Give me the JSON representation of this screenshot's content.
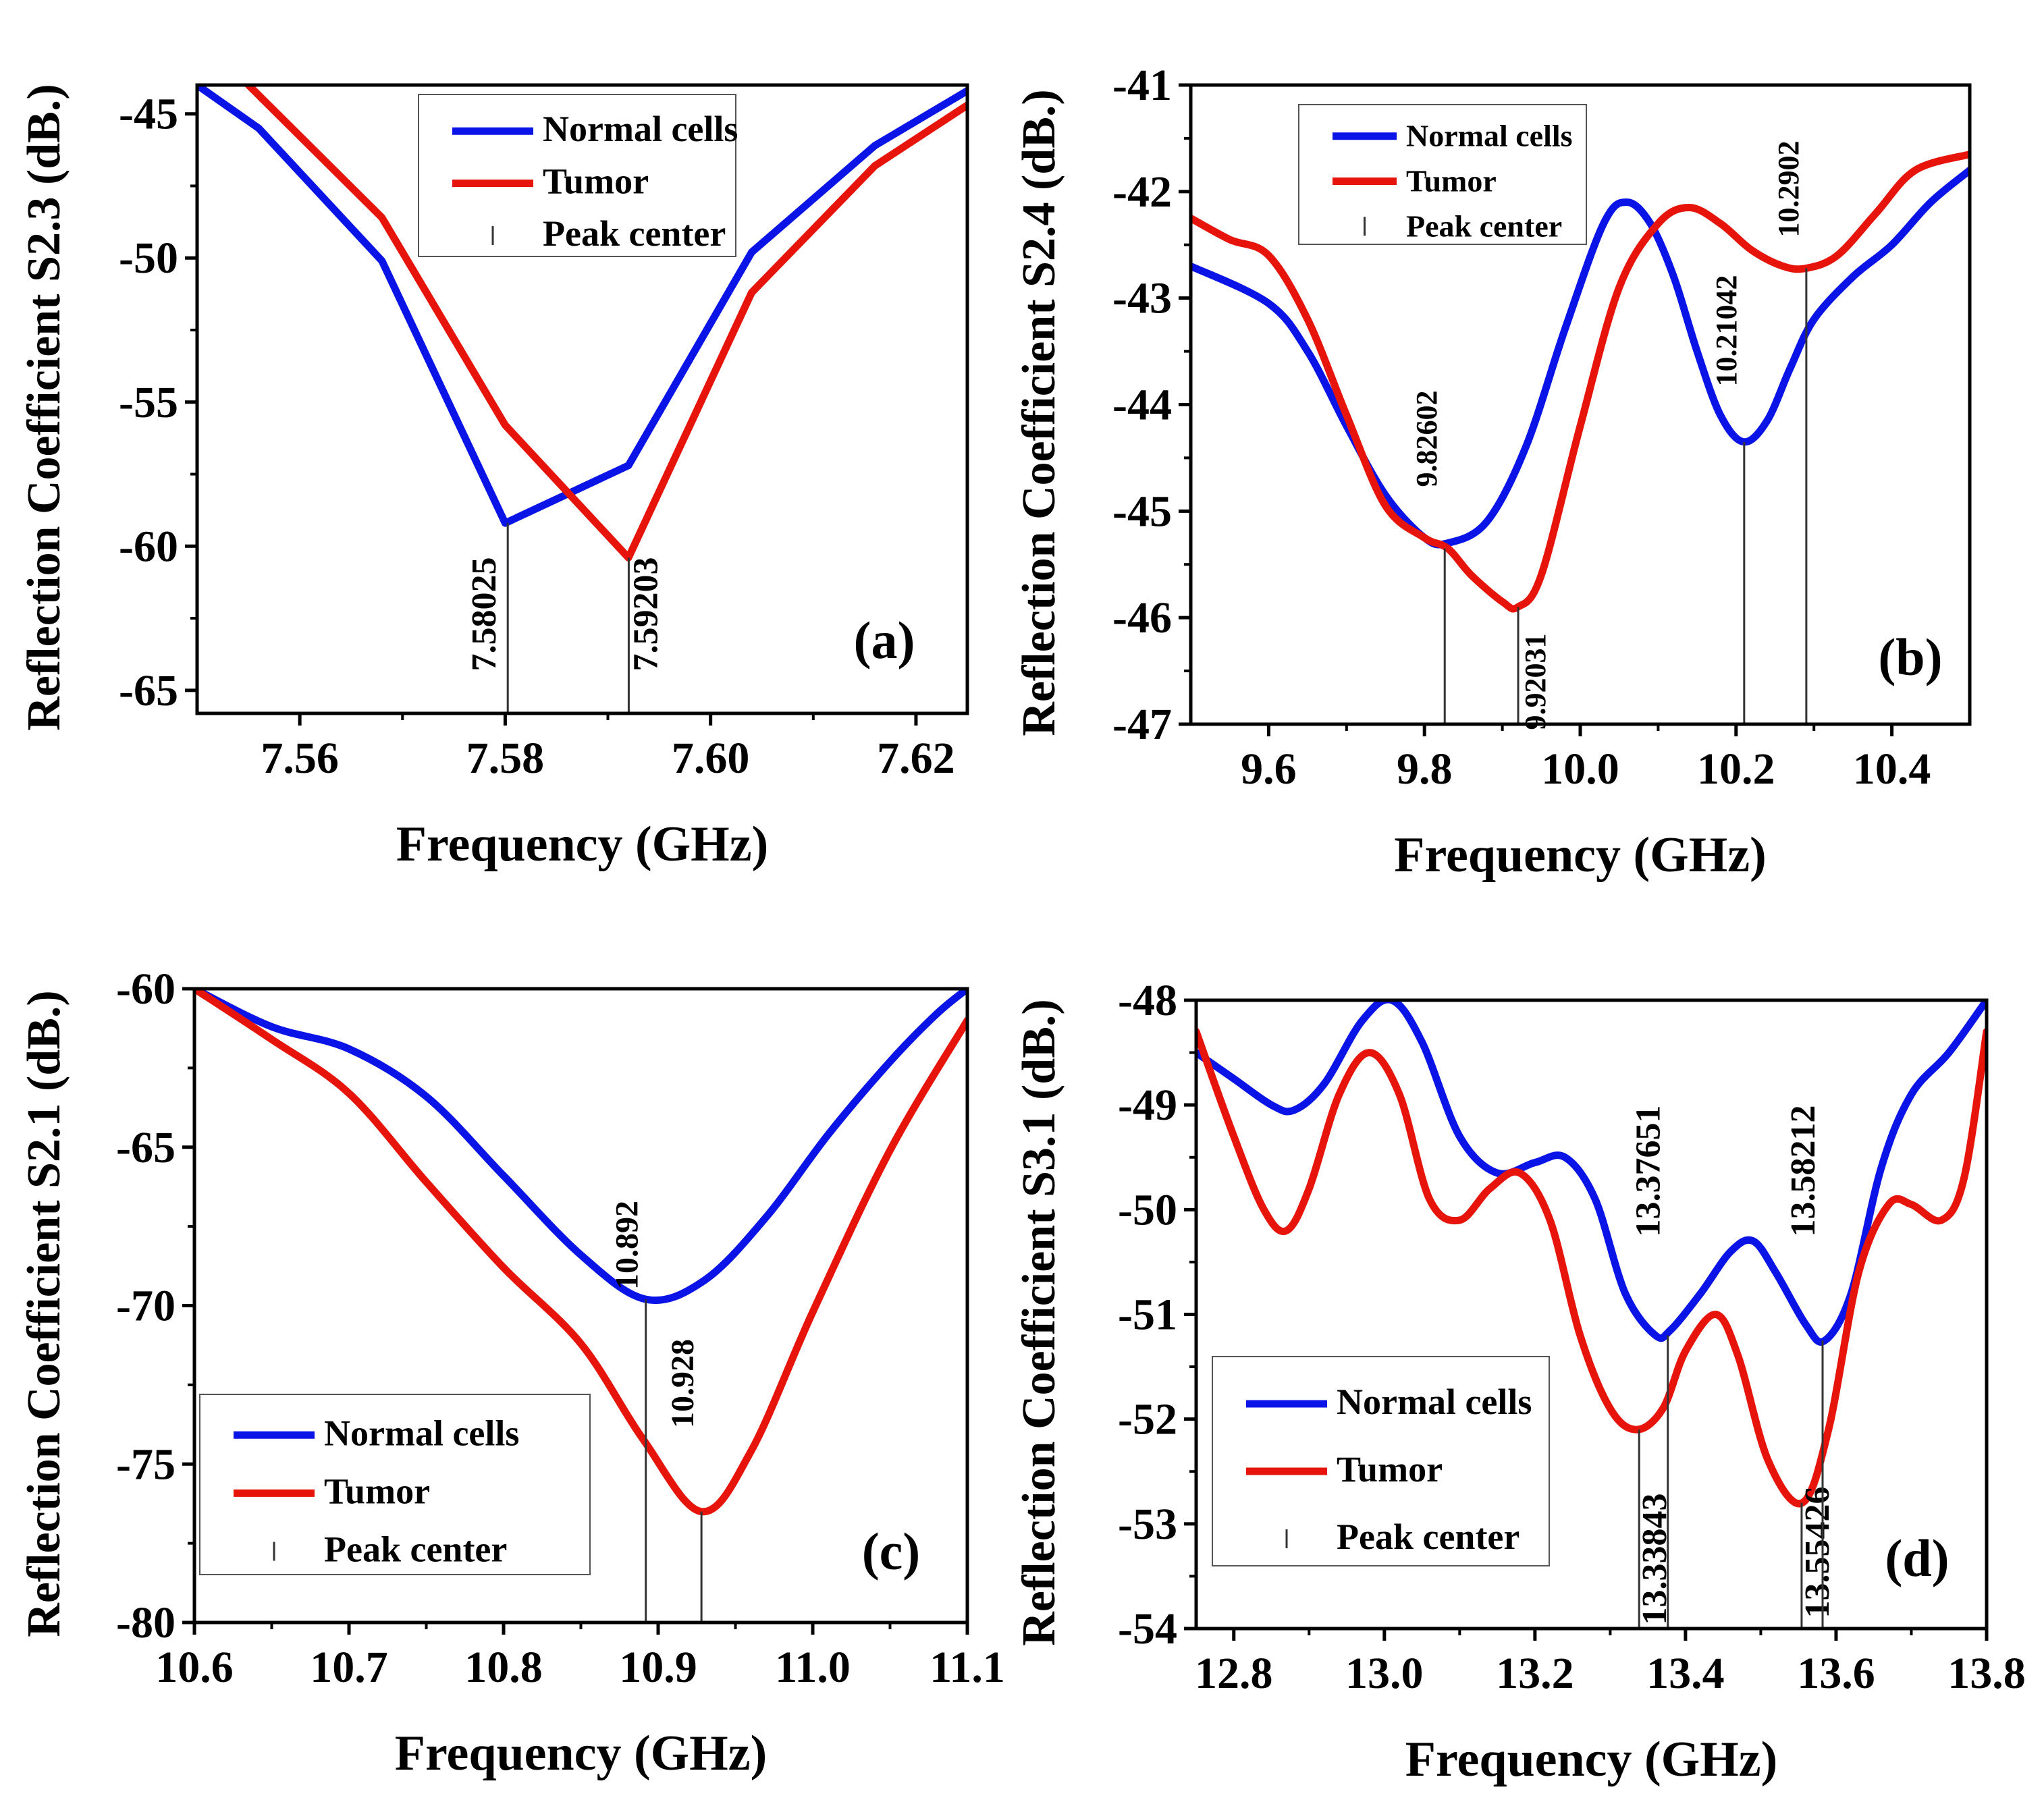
{
  "chart_data": [
    {
      "type": "line",
      "panel_label": "(a)",
      "xlabel": "Frequency (GHz)",
      "ylabel": "Reflection Coefficient S2.3 (dB.)",
      "xlim": [
        7.55,
        7.625
      ],
      "ylim": [
        -65.8,
        -44
      ],
      "xticks": [
        7.56,
        7.58,
        7.6,
        7.62
      ],
      "xtick_labels": [
        "7.56",
        "7.58",
        "7.60",
        "7.62"
      ],
      "yticks": [
        -45,
        -50,
        -55,
        -60,
        -65
      ],
      "ytick_labels": [
        "-45",
        "-50",
        "-55",
        "-60",
        "-65"
      ],
      "series": [
        {
          "name": "Normal cells",
          "color": "#0a14e6",
          "x": [
            7.55,
            7.556,
            7.568,
            7.58,
            7.592,
            7.604,
            7.616,
            7.625
          ],
          "y": [
            -44,
            -45.5,
            -50.1,
            -59.2,
            -57.2,
            -49.8,
            -46.1,
            -44.2
          ]
        },
        {
          "name": "Tumor",
          "color": "#e6140a",
          "x": [
            7.555,
            7.568,
            7.58,
            7.592,
            7.604,
            7.616,
            7.625
          ],
          "y": [
            -44,
            -48.6,
            -55.8,
            -60.4,
            -51.2,
            -46.8,
            -44.7
          ]
        }
      ],
      "peaks": [
        {
          "x": 7.58025,
          "y": -59.2,
          "label": "7.58025"
        },
        {
          "x": 7.59203,
          "y": -60.4,
          "label": "7.59203"
        }
      ],
      "legend": {
        "position": "top-center",
        "entries": [
          "Normal cells",
          "Tumor",
          "Peak center"
        ]
      }
    },
    {
      "type": "line",
      "panel_label": "(b)",
      "xlabel": "Frequency (GHz)",
      "ylabel": "Reflection Coefficient S2.4 (dB.)",
      "xlim": [
        9.5,
        10.5
      ],
      "ylim": [
        -47,
        -41
      ],
      "xticks": [
        9.6,
        9.8,
        10.0,
        10.2,
        10.4
      ],
      "xtick_labels": [
        "9.6",
        "9.8",
        "10.0",
        "10.2",
        "10.4"
      ],
      "yticks": [
        -41,
        -42,
        -43,
        -44,
        -45,
        -46,
        -47
      ],
      "ytick_labels": [
        "-41",
        "-42",
        "-43",
        "-44",
        "-45",
        "-46",
        "-47"
      ],
      "series": [
        {
          "name": "Normal cells",
          "color": "#0a14e6",
          "x": [
            9.5,
            9.6,
            9.65,
            9.7,
            9.75,
            9.8,
            9.83,
            9.88,
            9.93,
            9.98,
            10.03,
            10.06,
            10.09,
            10.12,
            10.15,
            10.18,
            10.21,
            10.24,
            10.27,
            10.3,
            10.35,
            10.4,
            10.45,
            10.5
          ],
          "y": [
            -42.7,
            -43.05,
            -43.5,
            -44.2,
            -44.85,
            -45.25,
            -45.3,
            -45.1,
            -44.4,
            -43.3,
            -42.3,
            -42.1,
            -42.3,
            -42.8,
            -43.5,
            -44.1,
            -44.35,
            -44.15,
            -43.65,
            -43.2,
            -42.8,
            -42.5,
            -42.1,
            -41.8
          ]
        },
        {
          "name": "Tumor",
          "color": "#e6140a",
          "x": [
            9.5,
            9.55,
            9.6,
            9.65,
            9.7,
            9.75,
            9.8,
            9.83,
            9.86,
            9.9,
            9.92,
            9.95,
            10.0,
            10.05,
            10.1,
            10.14,
            10.18,
            10.22,
            10.26,
            10.29,
            10.33,
            10.38,
            10.43,
            10.5
          ],
          "y": [
            -42.25,
            -42.45,
            -42.6,
            -43.2,
            -44.1,
            -44.95,
            -45.25,
            -45.35,
            -45.6,
            -45.85,
            -45.9,
            -45.6,
            -44.2,
            -42.9,
            -42.3,
            -42.15,
            -42.3,
            -42.55,
            -42.7,
            -42.72,
            -42.6,
            -42.2,
            -41.8,
            -41.65
          ]
        }
      ],
      "peaks": [
        {
          "x": 9.82602,
          "y": -45.35,
          "label": "9.82602"
        },
        {
          "x": 9.92031,
          "y": -45.9,
          "label": "9.92031"
        },
        {
          "x": 10.21042,
          "y": -44.35,
          "label": "10.21042"
        },
        {
          "x": 10.2902,
          "y": -42.72,
          "label": "10.2902"
        }
      ],
      "legend": {
        "position": "top-left",
        "entries": [
          "Normal cells",
          "Tumor",
          "Peak center"
        ]
      }
    },
    {
      "type": "line",
      "panel_label": "(c)",
      "xlabel": "Frequency (GHz)",
      "ylabel": "Reflection Coefficient S2.1 (dB.)",
      "xlim": [
        10.6,
        11.1
      ],
      "ylim": [
        -80,
        -60
      ],
      "xticks": [
        10.6,
        10.7,
        10.8,
        10.9,
        11.0,
        11.1
      ],
      "xtick_labels": [
        "10.6",
        "10.7",
        "10.8",
        "10.9",
        "11.0",
        "11.1"
      ],
      "yticks": [
        -60,
        -65,
        -70,
        -75,
        -80
      ],
      "ytick_labels": [
        "-60",
        "-65",
        "-70",
        "-75",
        "-80"
      ],
      "series": [
        {
          "name": "Normal cells",
          "color": "#0a14e6",
          "x": [
            10.6,
            10.65,
            10.7,
            10.75,
            10.8,
            10.85,
            10.892,
            10.93,
            10.97,
            11.01,
            11.05,
            11.08,
            11.1
          ],
          "y": [
            -60,
            -61.2,
            -61.9,
            -63.4,
            -65.9,
            -68.4,
            -69.8,
            -69.2,
            -67.2,
            -64.6,
            -62.3,
            -60.8,
            -60
          ]
        },
        {
          "name": "Tumor",
          "color": "#e6140a",
          "x": [
            10.6,
            10.65,
            10.7,
            10.75,
            10.8,
            10.85,
            10.89,
            10.928,
            10.96,
            11.0,
            11.05,
            11.1
          ],
          "y": [
            -60,
            -61.6,
            -63.3,
            -66.1,
            -68.8,
            -71.2,
            -74.2,
            -76.5,
            -74.6,
            -70.2,
            -65.1,
            -61
          ]
        }
      ],
      "peaks": [
        {
          "x": 10.892,
          "y": -69.8,
          "label": "10.892"
        },
        {
          "x": 10.928,
          "y": -76.5,
          "label": "10.928"
        }
      ],
      "legend": {
        "position": "bottom-left",
        "entries": [
          "Normal cells",
          "Tumor",
          "Peak center"
        ]
      }
    },
    {
      "type": "line",
      "panel_label": "(d)",
      "xlabel": "Frequency (GHz)",
      "ylabel": "Reflection Coefficient S3.1 (dB.)",
      "xlim": [
        12.75,
        13.8
      ],
      "ylim": [
        -54,
        -48
      ],
      "xticks": [
        12.8,
        13.0,
        13.2,
        13.4,
        13.6,
        13.8
      ],
      "xtick_labels": [
        "12.8",
        "13.0",
        "13.2",
        "13.4",
        "13.6",
        "13.8"
      ],
      "yticks": [
        -48,
        -49,
        -50,
        -51,
        -52,
        -53,
        -54
      ],
      "ytick_labels": [
        "-48",
        "-49",
        "-50",
        "-51",
        "-52",
        "-53",
        "-54"
      ],
      "series": [
        {
          "name": "Normal cells",
          "color": "#0a14e6",
          "x": [
            12.75,
            12.8,
            12.85,
            12.88,
            12.92,
            12.97,
            13.01,
            13.05,
            13.1,
            13.15,
            13.2,
            13.24,
            13.28,
            13.32,
            13.36,
            13.38,
            13.42,
            13.46,
            13.49,
            13.52,
            13.56,
            13.585,
            13.62,
            13.66,
            13.7,
            13.75,
            13.8
          ],
          "y": [
            -48.5,
            -48.75,
            -49.0,
            -49.05,
            -48.8,
            -48.2,
            -48.0,
            -48.4,
            -49.3,
            -49.65,
            -49.55,
            -49.5,
            -49.9,
            -50.8,
            -51.2,
            -51.15,
            -50.8,
            -50.4,
            -50.3,
            -50.6,
            -51.1,
            -51.25,
            -50.8,
            -49.6,
            -48.9,
            -48.5,
            -48.0
          ]
        },
        {
          "name": "Tumor",
          "color": "#e6140a",
          "x": [
            12.75,
            12.8,
            12.84,
            12.87,
            12.9,
            12.94,
            12.98,
            13.02,
            13.06,
            13.1,
            13.14,
            13.18,
            13.22,
            13.26,
            13.3,
            13.335,
            13.37,
            13.4,
            13.44,
            13.47,
            13.51,
            13.555,
            13.59,
            13.63,
            13.67,
            13.7,
            13.74,
            13.77,
            13.8
          ],
          "y": [
            -48.3,
            -49.3,
            -50.0,
            -50.2,
            -49.8,
            -48.9,
            -48.5,
            -48.9,
            -49.9,
            -50.1,
            -49.8,
            -49.65,
            -50.1,
            -51.2,
            -51.9,
            -52.1,
            -51.9,
            -51.35,
            -51.0,
            -51.4,
            -52.4,
            -52.8,
            -52.1,
            -50.6,
            -49.95,
            -49.95,
            -50.1,
            -49.7,
            -48.3
          ]
        }
      ],
      "peaks": [
        {
          "x": 13.33843,
          "y": -52.1,
          "label": "13.33843"
        },
        {
          "x": 13.37651,
          "y": -51.2,
          "label": "13.37651"
        },
        {
          "x": 13.55426,
          "y": -52.8,
          "label": "13.55426"
        },
        {
          "x": 13.58212,
          "y": -51.25,
          "label": "13.58212"
        }
      ],
      "legend": {
        "position": "bottom-left",
        "entries": [
          "Normal cells",
          "Tumor",
          "Peak center"
        ]
      }
    }
  ]
}
